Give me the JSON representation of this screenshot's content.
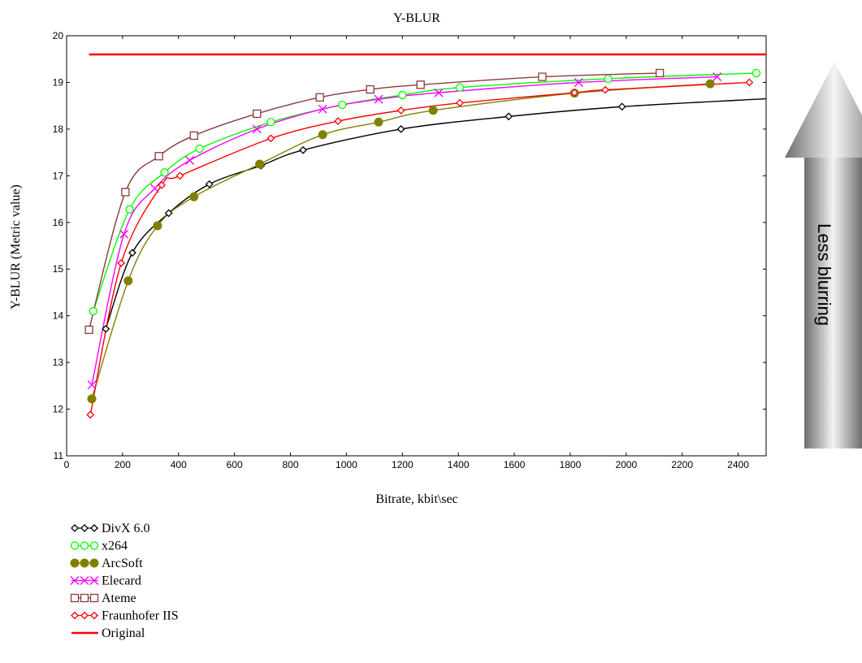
{
  "chart_data": {
    "type": "line",
    "title": "Y-BLUR",
    "xlabel": "Bitrate, kbit\\sec",
    "ylabel": "Y-BLUR (Metric value)",
    "xlim": [
      0,
      2500
    ],
    "ylim": [
      11,
      20
    ],
    "x_ticks": [
      0,
      200,
      400,
      600,
      800,
      1000,
      1200,
      1400,
      1600,
      1800,
      2000,
      2200,
      2400
    ],
    "y_ticks": [
      11,
      12,
      13,
      14,
      15,
      16,
      17,
      18,
      19,
      20
    ],
    "grid": false,
    "legend_position": "bottom-left",
    "series": [
      {
        "name": "DivX 6.0",
        "color": "#000000",
        "marker": "diamond",
        "x": [
          140,
          235,
          365,
          510,
          695,
          845,
          1195,
          1580,
          1985
        ],
        "y": [
          13.72,
          15.35,
          16.2,
          16.82,
          17.22,
          17.55,
          18.0,
          18.27,
          18.48
        ],
        "extend_to": [
          2500,
          18.65
        ]
      },
      {
        "name": "x264",
        "color": "#00ff00",
        "marker": "circle",
        "x": [
          95,
          225,
          350,
          475,
          730,
          985,
          1200,
          1405,
          1935,
          2465
        ],
        "y": [
          14.1,
          16.28,
          17.07,
          17.58,
          18.15,
          18.52,
          18.73,
          18.89,
          19.08,
          19.2
        ]
      },
      {
        "name": "ArcSoft",
        "color": "#808000",
        "marker": "filled-circle",
        "x": [
          90,
          220,
          325,
          455,
          690,
          915,
          1115,
          1310,
          1815,
          2300
        ],
        "y": [
          12.22,
          14.75,
          15.93,
          16.55,
          17.25,
          17.88,
          18.15,
          18.4,
          18.77,
          18.97
        ]
      },
      {
        "name": "Elecard",
        "color": "#ff00ff",
        "marker": "x",
        "x": [
          90,
          205,
          315,
          440,
          680,
          915,
          1115,
          1330,
          1830,
          2325
        ],
        "y": [
          12.52,
          15.75,
          16.73,
          17.33,
          18.0,
          18.43,
          18.64,
          18.78,
          19.0,
          19.12
        ]
      },
      {
        "name": "Ateme",
        "color": "#8b3a3a",
        "marker": "square",
        "x": [
          80,
          210,
          330,
          455,
          680,
          905,
          1085,
          1265,
          1700,
          2120
        ],
        "y": [
          13.7,
          16.65,
          17.42,
          17.86,
          18.33,
          18.68,
          18.85,
          18.95,
          19.12,
          19.2
        ]
      },
      {
        "name": "Fraunhofer IIS",
        "color": "#ff0000",
        "marker": "diamond",
        "x": [
          85,
          195,
          340,
          405,
          730,
          970,
          1195,
          1405,
          1815,
          1925,
          2440
        ],
        "y": [
          11.88,
          15.13,
          16.8,
          17.0,
          17.8,
          18.17,
          18.4,
          18.56,
          18.78,
          18.84,
          19.0
        ]
      },
      {
        "name": "Original",
        "color": "#ff0000",
        "marker": "none",
        "x": [
          80,
          2500
        ],
        "y": [
          19.6,
          19.6
        ]
      }
    ],
    "annotation": "Less blurring"
  }
}
